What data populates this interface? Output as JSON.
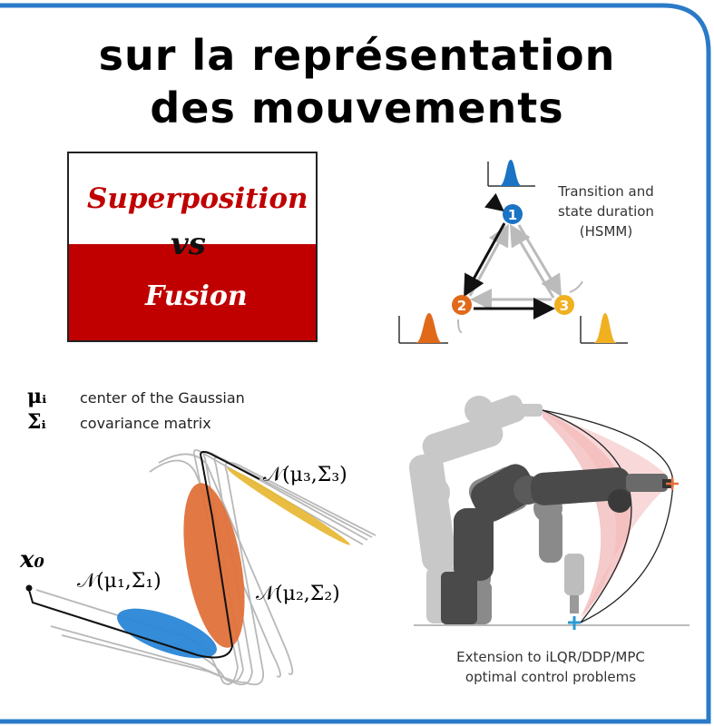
{
  "title": {
    "line1": "sur la représentation",
    "line2": "des mouvements"
  },
  "panel": {
    "top_word": "Superposition",
    "middle_word": "vs",
    "bottom_word": "Fusion",
    "colors": {
      "red": "#c00000",
      "frame": "#222222"
    }
  },
  "hsmm": {
    "caption_lines": [
      "Transition and",
      "state duration",
      "(HSMM)"
    ],
    "states": [
      {
        "label": "1",
        "color": "#1a73c4"
      },
      {
        "label": "2",
        "color": "#e06a1a"
      },
      {
        "label": "3",
        "color": "#f0b020"
      }
    ]
  },
  "legend": [
    {
      "symbol": "μᵢ",
      "text": "center of the Gaussian"
    },
    {
      "symbol": "Σᵢ",
      "text": "covariance matrix"
    }
  ],
  "gaussians": {
    "x0": "x₀",
    "n1": "𝒩(μ₁,Σ₁)",
    "n2": "𝒩(μ₂,Σ₂)",
    "n3": "𝒩(μ₃,Σ₃)",
    "colors": {
      "g1": "#2a86d6",
      "g2": "#e0713a",
      "g3": "#e8b838"
    }
  },
  "robot": {
    "caption_lines": [
      "Extension to iLQR/DDP/MPC",
      "optimal control problems"
    ],
    "colors": {
      "arm_dark": "#4a4a4a",
      "arm_mid": "#8a8a8a",
      "arm_light": "#c8c8c8",
      "band": "#f2b8b8",
      "target": "#e8703a",
      "base": "#2a9ad6"
    }
  },
  "frame_color": "#2a7ac8"
}
